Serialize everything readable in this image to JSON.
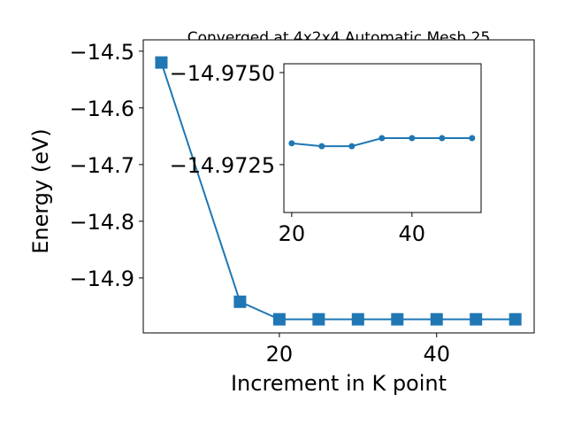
{
  "chart_data": [
    {
      "type": "line",
      "title": "Converged at 4x2x4 Automatic Mesh 25",
      "xlabel": "Increment in K point",
      "ylabel": "Energy (eV)",
      "x": [
        5,
        15,
        20,
        25,
        30,
        35,
        40,
        45,
        50
      ],
      "values": [
        -14.52,
        -14.942,
        -14.973,
        -14.973,
        -14.973,
        -14.973,
        -14.973,
        -14.973,
        -14.973
      ],
      "color": "#1f77b4",
      "marker": "square",
      "xlim": [
        2.7,
        52.4
      ],
      "xticks": [
        20,
        40
      ],
      "ylim": [
        -14.997,
        -14.48
      ],
      "yticks": [
        {
          "value": -14.9,
          "label": "−14.9"
        },
        {
          "value": -14.8,
          "label": "−14.8"
        },
        {
          "value": -14.7,
          "label": "−14.7"
        },
        {
          "value": -14.6,
          "label": "−14.6"
        },
        {
          "value": -14.5,
          "label": "−14.5"
        }
      ]
    },
    {
      "type": "line",
      "x": [
        20,
        25,
        30,
        35,
        40,
        45,
        50
      ],
      "values": [
        -14.97308,
        -14.973,
        -14.973,
        -14.97322,
        -14.97322,
        -14.97322,
        -14.97322
      ],
      "color": "#1f77b4",
      "marker": "circle",
      "xlim": [
        18.7,
        51.5
      ],
      "xticks": [
        20,
        40
      ],
      "ylim": [
        -14.9712,
        -14.97524
      ],
      "yticks": [
        {
          "value": -14.9725,
          "label": "−14.9725"
        },
        {
          "value": -14.975,
          "label": "−14.9750"
        }
      ]
    }
  ]
}
